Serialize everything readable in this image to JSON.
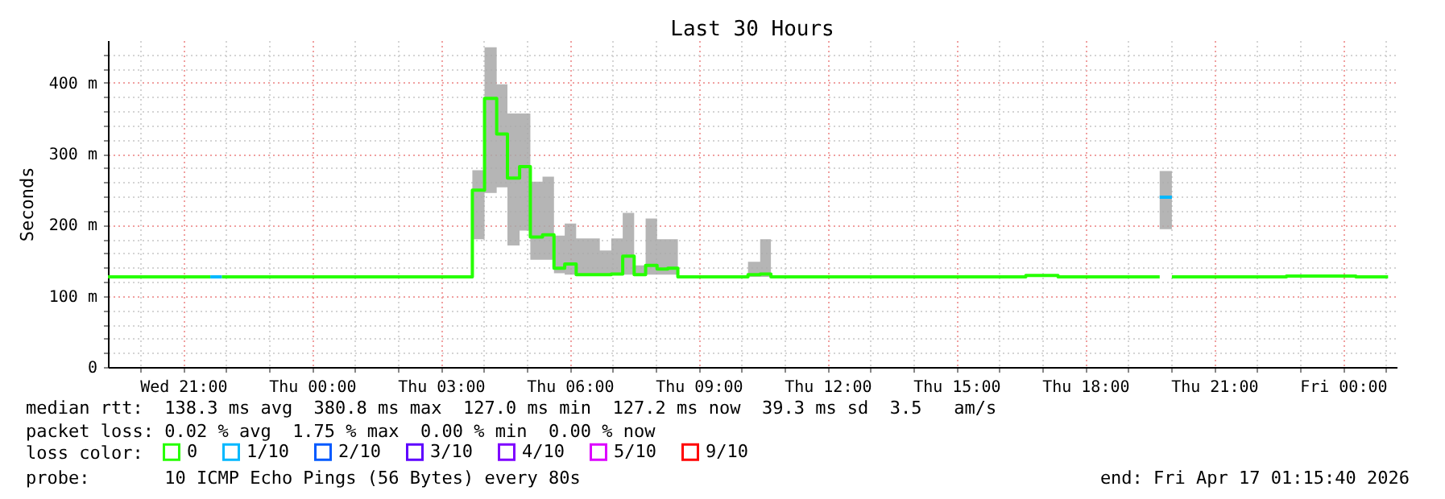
{
  "chart_data": {
    "type": "step",
    "title": "Last 30 Hours",
    "ylabel": "Seconds",
    "legend_title": "loss color:",
    "legend": "bottom",
    "grid": true,
    "xlim": [
      "2026-04-15T19:15",
      "2026-04-17T01:15"
    ],
    "xticks": [
      {
        "value": "2026-04-15T20:00",
        "label": null
      },
      {
        "value": "2026-04-15T21:00",
        "label": "Wed 21:00"
      },
      {
        "value": "2026-04-15T22:00",
        "label": null
      },
      {
        "value": "2026-04-15T23:00",
        "label": null
      },
      {
        "value": "2026-04-16T00:00",
        "label": "Thu 00:00"
      },
      {
        "value": "2026-04-16T01:00",
        "label": null
      },
      {
        "value": "2026-04-16T02:00",
        "label": null
      },
      {
        "value": "2026-04-16T03:00",
        "label": "Thu 03:00"
      },
      {
        "value": "2026-04-16T04:00",
        "label": null
      },
      {
        "value": "2026-04-16T05:00",
        "label": null
      },
      {
        "value": "2026-04-16T06:00",
        "label": "Thu 06:00"
      },
      {
        "value": "2026-04-16T07:00",
        "label": null
      },
      {
        "value": "2026-04-16T08:00",
        "label": null
      },
      {
        "value": "2026-04-16T09:00",
        "label": "Thu 09:00"
      },
      {
        "value": "2026-04-16T10:00",
        "label": null
      },
      {
        "value": "2026-04-16T11:00",
        "label": null
      },
      {
        "value": "2026-04-16T12:00",
        "label": "Thu 12:00"
      },
      {
        "value": "2026-04-16T13:00",
        "label": null
      },
      {
        "value": "2026-04-16T14:00",
        "label": null
      },
      {
        "value": "2026-04-16T15:00",
        "label": "Thu 15:00"
      },
      {
        "value": "2026-04-16T16:00",
        "label": null
      },
      {
        "value": "2026-04-16T17:00",
        "label": null
      },
      {
        "value": "2026-04-16T18:00",
        "label": "Thu 18:00"
      },
      {
        "value": "2026-04-16T19:00",
        "label": null
      },
      {
        "value": "2026-04-16T20:00",
        "label": null
      },
      {
        "value": "2026-04-16T21:00",
        "label": "Thu 21:00"
      },
      {
        "value": "2026-04-16T22:00",
        "label": null
      },
      {
        "value": "2026-04-16T23:00",
        "label": null
      },
      {
        "value": "2026-04-17T00:00",
        "label": "Fri 00:00"
      },
      {
        "value": "2026-04-17T01:00",
        "label": null
      }
    ],
    "ylim": [
      0,
      460
    ],
    "yticks": [
      0,
      {
        "value": 20,
        "label": null
      },
      {
        "value": 40,
        "label": null
      },
      {
        "value": 60,
        "label": null
      },
      {
        "value": 80,
        "label": null
      },
      {
        "value": 100,
        "label": "100 m"
      },
      {
        "value": 120,
        "label": null
      },
      {
        "value": 140,
        "label": null
      },
      {
        "value": 160,
        "label": null
      },
      {
        "value": 180,
        "label": null
      },
      {
        "value": 200,
        "label": "200 m"
      },
      {
        "value": 220,
        "label": null
      },
      {
        "value": 240,
        "label": null
      },
      {
        "value": 260,
        "label": null
      },
      {
        "value": 280,
        "label": null
      },
      {
        "value": 300,
        "label": "300 m"
      },
      {
        "value": 320,
        "label": null
      },
      {
        "value": 340,
        "label": null
      },
      {
        "value": 360,
        "label": null
      },
      {
        "value": 380,
        "label": null
      },
      {
        "value": 400,
        "label": "400 m"
      },
      {
        "value": 420,
        "label": null
      },
      {
        "value": 440,
        "label": null
      }
    ],
    "series": [
      {
        "name": "0",
        "color": "#26ff00",
        "x": [
          "2026-04-15T19:15",
          "2026-04-15T21:38",
          "2026-04-15T21:46",
          "2026-04-15T21:54",
          "2026-04-16T03:44",
          "2026-04-16T04:01",
          "2026-04-16T04:18",
          "2026-04-16T04:33",
          "2026-04-16T04:50",
          "2026-04-16T05:05",
          "2026-04-16T05:22",
          "2026-04-16T05:38",
          "2026-04-16T05:53",
          "2026-04-16T06:09",
          "2026-04-16T06:42",
          "2026-04-16T06:58",
          "2026-04-16T07:14",
          "2026-04-16T07:30",
          "2026-04-16T07:46",
          "2026-04-16T08:02",
          "2026-04-16T08:17",
          "2026-04-16T08:31",
          "2026-04-16T10:09",
          "2026-04-16T10:26",
          "2026-04-16T10:41",
          "2026-04-16T16:37",
          "2026-04-16T17:22",
          "2026-04-16T19:44",
          "2026-04-16T19:52",
          "2026-04-16T20:01",
          "2026-04-16T22:41",
          "2026-04-17T00:18",
          "2026-04-17T01:03"
        ],
        "values": [
          127,
          127,
          null,
          127,
          249,
          378,
          328,
          266,
          282,
          183,
          186,
          139,
          145,
          130,
          130,
          131,
          156,
          130,
          143,
          138,
          139,
          127,
          130,
          131,
          127,
          129,
          127,
          127,
          null,
          127,
          128,
          127,
          127
        ],
        "lower": [
          null,
          null,
          null,
          null,
          180,
          245,
          253,
          171,
          192,
          151,
          151,
          132,
          130,
          130,
          130,
          130,
          130,
          130,
          130,
          130,
          130,
          127,
          127,
          127,
          127,
          null,
          null,
          null,
          null,
          null,
          null,
          null,
          null
        ],
        "upper": [
          null,
          null,
          null,
          null,
          277,
          450,
          398,
          357,
          357,
          261,
          268,
          185,
          202,
          181,
          164,
          181,
          217,
          143,
          209,
          180,
          180,
          127,
          148,
          180,
          127,
          null,
          null,
          null,
          null,
          null,
          null,
          null,
          null
        ]
      },
      {
        "name": "1/10",
        "color": "#00b8ff",
        "x": [
          "2026-04-15T21:38",
          "2026-04-15T21:54",
          "2026-04-15T21:57",
          "2026-04-16T19:44",
          "2026-04-16T20:01"
        ],
        "values": [
          127,
          127,
          null,
          239,
          239
        ],
        "lower": [
          null,
          null,
          null,
          194,
          194
        ],
        "upper": [
          null,
          null,
          null,
          276,
          276
        ]
      },
      {
        "name": "2/10",
        "color": "#0059ff"
      },
      {
        "name": "3/10",
        "color": "#5e00ff"
      },
      {
        "name": "4/10",
        "color": "#7e00ff"
      },
      {
        "name": "5/10",
        "color": "#dd00ff"
      },
      {
        "name": "9/10",
        "color": "#ff0000"
      }
    ],
    "annotations": [
      "median rtt:  138.3 ms avg  380.8 ms max  127.0 ms min  127.2 ms now  39.3 ms sd  3.5   am/s",
      "packet loss: 0.02 % avg  1.75 % max  0.00 % min  0.00 % now",
      "probe:       10 ICMP Echo Pings (56 Bytes) every 80s",
      "end: Fri Apr 17 01:15:40 2026"
    ]
  }
}
